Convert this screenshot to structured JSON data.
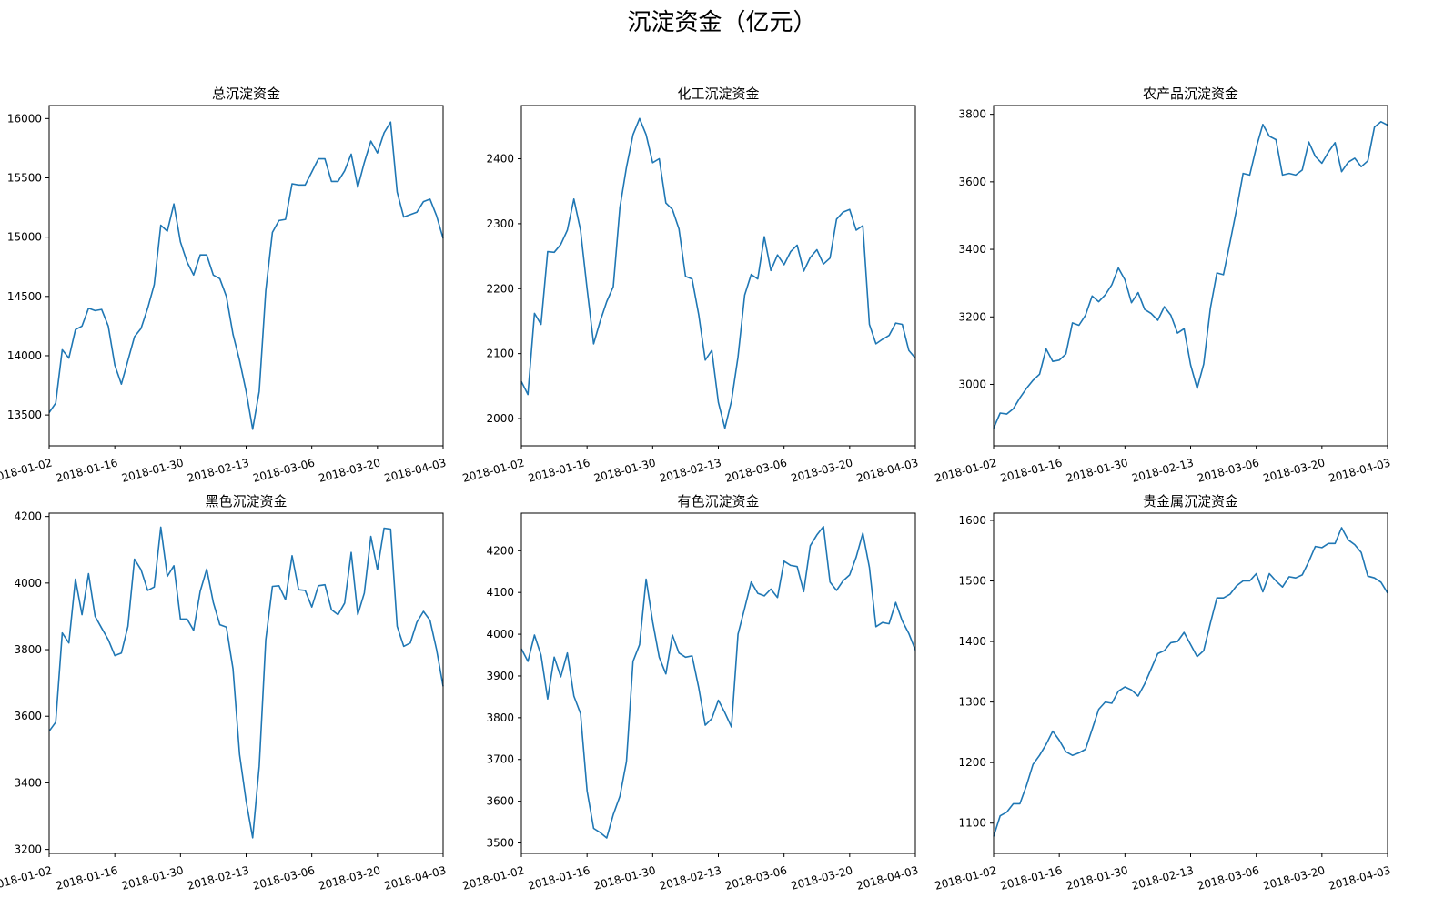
{
  "figure": {
    "title": "沉淀资金（亿元）"
  },
  "chart_data": [
    {
      "type": "line",
      "title": "总沉淀资金",
      "xlabel": "",
      "ylabel": "",
      "x_ticks": [
        "2018-01-02",
        "2018-01-16",
        "2018-01-30",
        "2018-02-13",
        "2018-03-06",
        "2018-03-20",
        "2018-04-03"
      ],
      "y_ticks": [
        13500,
        14000,
        14500,
        15000,
        15500,
        16000
      ],
      "ylim": [
        13240,
        16110
      ],
      "series": [
        {
          "values": [
            13520,
            13600,
            14050,
            13980,
            14220,
            14250,
            14400,
            14380,
            14390,
            14250,
            13920,
            13760,
            13960,
            14160,
            14230,
            14400,
            14600,
            15100,
            15050,
            15280,
            14960,
            14790,
            14680,
            14850,
            14850,
            14680,
            14650,
            14500,
            14180,
            13960,
            13700,
            13380,
            13700,
            14550,
            15040,
            15140,
            15150,
            15450,
            15440,
            15440,
            15550,
            15660,
            15660,
            15470,
            15470,
            15560,
            15700,
            15420,
            15630,
            15810,
            15710,
            15880,
            15970,
            15380,
            15170,
            15190,
            15210,
            15300,
            15320,
            15180,
            14990
          ]
        }
      ]
    },
    {
      "type": "line",
      "title": "化工沉淀资金",
      "xlabel": "",
      "ylabel": "",
      "x_ticks": [
        "2018-01-02",
        "2018-01-16",
        "2018-01-30",
        "2018-02-13",
        "2018-03-06",
        "2018-03-20",
        "2018-04-03"
      ],
      "y_ticks": [
        2000,
        2100,
        2200,
        2300,
        2400
      ],
      "ylim": [
        1958,
        2482
      ],
      "series": [
        {
          "values": [
            2057,
            2037,
            2162,
            2145,
            2257,
            2256,
            2268,
            2290,
            2338,
            2290,
            2200,
            2115,
            2150,
            2180,
            2203,
            2325,
            2387,
            2437,
            2462,
            2437,
            2394,
            2400,
            2332,
            2322,
            2292,
            2219,
            2215,
            2160,
            2090,
            2105,
            2025,
            1985,
            2027,
            2095,
            2190,
            2222,
            2215,
            2280,
            2228,
            2252,
            2237,
            2257,
            2267,
            2227,
            2248,
            2260,
            2238,
            2247,
            2307,
            2318,
            2322,
            2290,
            2297,
            2145,
            2115,
            2122,
            2128,
            2147,
            2145,
            2105,
            2093
          ]
        }
      ]
    },
    {
      "type": "line",
      "title": "农产品沉淀资金",
      "xlabel": "",
      "ylabel": "",
      "x_ticks": [
        "2018-01-02",
        "2018-01-16",
        "2018-01-30",
        "2018-02-13",
        "2018-03-06",
        "2018-03-20",
        "2018-04-03"
      ],
      "y_ticks": [
        3000,
        3200,
        3400,
        3600,
        3800
      ],
      "ylim": [
        2818,
        3826
      ],
      "series": [
        {
          "values": [
            2870,
            2915,
            2912,
            2928,
            2960,
            2988,
            3012,
            3030,
            3105,
            3068,
            3072,
            3090,
            3182,
            3175,
            3205,
            3262,
            3245,
            3265,
            3295,
            3345,
            3310,
            3242,
            3272,
            3222,
            3210,
            3190,
            3230,
            3205,
            3152,
            3165,
            3058,
            2988,
            3060,
            3225,
            3330,
            3325,
            3420,
            3518,
            3625,
            3620,
            3702,
            3770,
            3735,
            3725,
            3620,
            3625,
            3620,
            3635,
            3718,
            3675,
            3655,
            3688,
            3716,
            3630,
            3658,
            3670,
            3645,
            3662,
            3762,
            3778,
            3768
          ]
        }
      ]
    },
    {
      "type": "line",
      "title": "黑色沉淀资金",
      "xlabel": "",
      "ylabel": "",
      "x_ticks": [
        "2018-01-02",
        "2018-01-16",
        "2018-01-30",
        "2018-02-13",
        "2018-03-06",
        "2018-03-20",
        "2018-04-03"
      ],
      "y_ticks": [
        3200,
        3400,
        3600,
        3800,
        4000,
        4200
      ],
      "ylim": [
        3188,
        4210
      ],
      "series": [
        {
          "values": [
            3555,
            3582,
            3850,
            3820,
            4012,
            3905,
            4028,
            3900,
            3865,
            3830,
            3782,
            3790,
            3870,
            4072,
            4040,
            3978,
            3988,
            4168,
            4020,
            4052,
            3892,
            3892,
            3858,
            3975,
            4042,
            3942,
            3875,
            3868,
            3742,
            3485,
            3345,
            3235,
            3450,
            3830,
            3990,
            3992,
            3950,
            4082,
            3980,
            3978,
            3928,
            3992,
            3995,
            3920,
            3905,
            3940,
            4092,
            3905,
            3970,
            4140,
            4040,
            4165,
            4162,
            3870,
            3810,
            3820,
            3882,
            3915,
            3888,
            3800,
            3690
          ]
        }
      ]
    },
    {
      "type": "line",
      "title": "有色沉淀资金",
      "xlabel": "",
      "ylabel": "",
      "x_ticks": [
        "2018-01-02",
        "2018-01-16",
        "2018-01-30",
        "2018-02-13",
        "2018-03-06",
        "2018-03-20",
        "2018-04-03"
      ],
      "y_ticks": [
        3500,
        3600,
        3700,
        3800,
        3900,
        4000,
        4100,
        4200
      ],
      "ylim": [
        3475,
        4290
      ],
      "series": [
        {
          "values": [
            3965,
            3935,
            3998,
            3950,
            3845,
            3945,
            3898,
            3955,
            3852,
            3810,
            3625,
            3535,
            3525,
            3512,
            3568,
            3612,
            3695,
            3935,
            3975,
            4132,
            4030,
            3945,
            3905,
            3998,
            3955,
            3945,
            3948,
            3872,
            3782,
            3798,
            3842,
            3812,
            3778,
            4000,
            4062,
            4125,
            4098,
            4092,
            4108,
            4088,
            4175,
            4165,
            4162,
            4102,
            4212,
            4238,
            4258,
            4125,
            4105,
            4128,
            4142,
            4185,
            4242,
            4160,
            4018,
            4028,
            4025,
            4076,
            4032,
            4002,
            3962
          ]
        }
      ]
    },
    {
      "type": "line",
      "title": "贵金属沉淀资金",
      "xlabel": "",
      "ylabel": "",
      "x_ticks": [
        "2018-01-02",
        "2018-01-16",
        "2018-01-30",
        "2018-02-13",
        "2018-03-06",
        "2018-03-20",
        "2018-04-03"
      ],
      "y_ticks": [
        1100,
        1200,
        1300,
        1400,
        1500,
        1600
      ],
      "ylim": [
        1050,
        1612
      ],
      "series": [
        {
          "values": [
            1078,
            1112,
            1118,
            1132,
            1132,
            1162,
            1197,
            1212,
            1230,
            1252,
            1237,
            1218,
            1212,
            1216,
            1222,
            1255,
            1288,
            1300,
            1298,
            1318,
            1325,
            1320,
            1310,
            1330,
            1355,
            1380,
            1385,
            1398,
            1400,
            1415,
            1395,
            1375,
            1385,
            1430,
            1472,
            1472,
            1478,
            1492,
            1500,
            1500,
            1512,
            1482,
            1512,
            1500,
            1490,
            1507,
            1505,
            1510,
            1532,
            1557,
            1555,
            1562,
            1562,
            1588,
            1568,
            1560,
            1547,
            1508,
            1505,
            1498,
            1480
          ]
        }
      ]
    }
  ]
}
